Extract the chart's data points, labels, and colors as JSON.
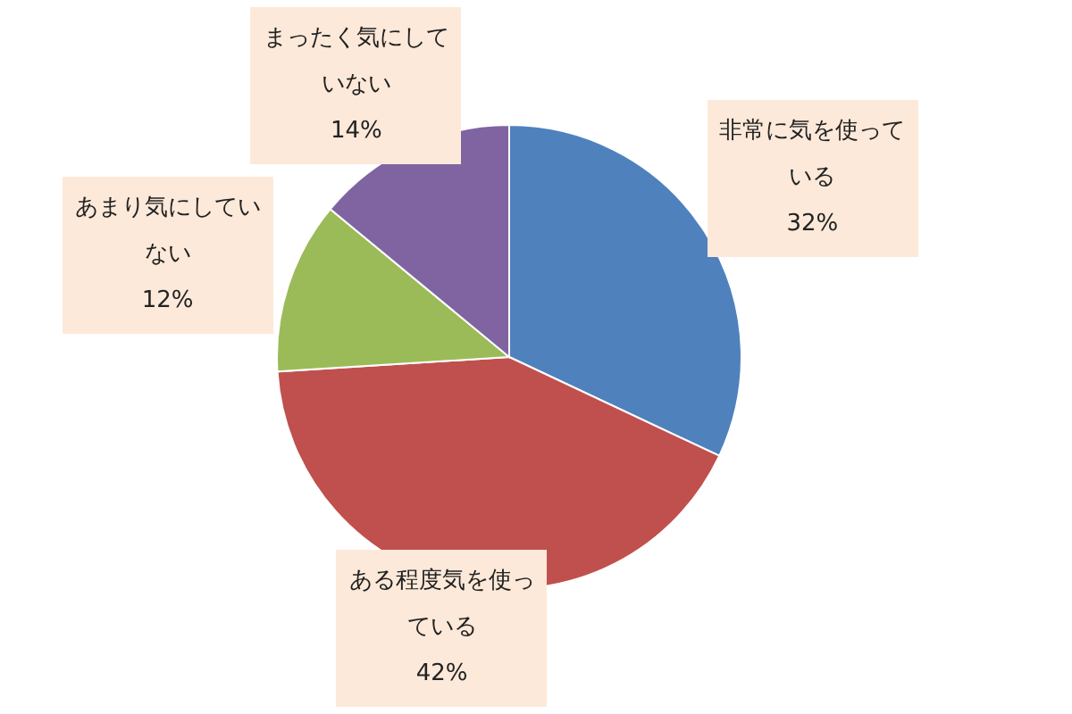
{
  "chart_data": {
    "type": "pie",
    "categories": [
      "非常に気を使っている",
      "ある程度気を使っている",
      "あまり気にしていない",
      "まったく気にしていない"
    ],
    "values": [
      32,
      42,
      12,
      14
    ],
    "value_labels": [
      "32%",
      "42%",
      "12%",
      "14%"
    ],
    "colors": [
      "#4f81bd",
      "#c0504d",
      "#9bbb59",
      "#8064a2"
    ]
  }
}
